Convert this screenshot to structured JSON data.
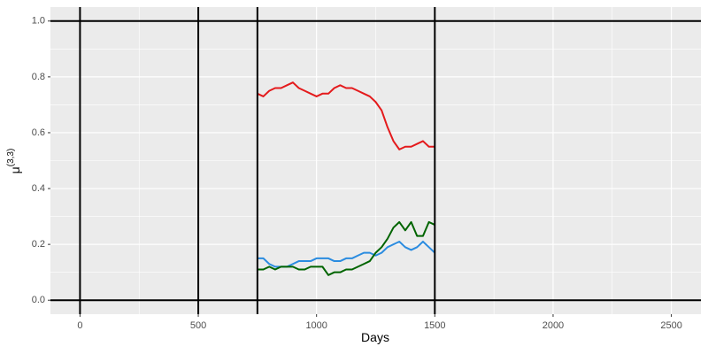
{
  "chart_data": {
    "type": "line",
    "xlabel": "Days",
    "ylabel": "μ",
    "ylabel_sup": "(3,3)",
    "x": [
      750,
      775,
      800,
      825,
      850,
      875,
      900,
      925,
      950,
      975,
      1000,
      1025,
      1050,
      1075,
      1100,
      1125,
      1150,
      1175,
      1200,
      1225,
      1250,
      1275,
      1300,
      1325,
      1350,
      1375,
      1400,
      1425,
      1450,
      1475,
      1500
    ],
    "series": [
      {
        "color": "#e41a1c",
        "values": [
          0.74,
          0.73,
          0.75,
          0.76,
          0.76,
          0.77,
          0.78,
          0.76,
          0.75,
          0.74,
          0.73,
          0.74,
          0.74,
          0.76,
          0.77,
          0.76,
          0.76,
          0.75,
          0.74,
          0.73,
          0.71,
          0.68,
          0.62,
          0.57,
          0.54,
          0.55,
          0.55,
          0.56,
          0.57,
          0.55,
          0.55
        ]
      },
      {
        "color": "#2b8ce0",
        "values": [
          0.15,
          0.15,
          0.13,
          0.12,
          0.12,
          0.12,
          0.13,
          0.14,
          0.14,
          0.14,
          0.15,
          0.15,
          0.15,
          0.14,
          0.14,
          0.15,
          0.15,
          0.16,
          0.17,
          0.17,
          0.16,
          0.17,
          0.19,
          0.2,
          0.21,
          0.19,
          0.18,
          0.19,
          0.21,
          0.19,
          0.17
        ]
      },
      {
        "color": "#006400",
        "values": [
          0.11,
          0.11,
          0.12,
          0.11,
          0.12,
          0.12,
          0.12,
          0.11,
          0.11,
          0.12,
          0.12,
          0.12,
          0.09,
          0.1,
          0.1,
          0.11,
          0.11,
          0.12,
          0.13,
          0.14,
          0.17,
          0.19,
          0.22,
          0.26,
          0.28,
          0.25,
          0.28,
          0.23,
          0.23,
          0.28,
          0.27
        ]
      }
    ],
    "xlim": [
      -125,
      2625
    ],
    "ylim": [
      -0.05,
      1.05
    ],
    "xticks": [
      0,
      500,
      1000,
      1500,
      2000,
      2500
    ],
    "xminor": [
      250,
      750,
      1250,
      1750,
      2250
    ],
    "yticks": [
      {
        "value": 0,
        "label": "0.0"
      },
      0.2,
      0.4,
      0.6,
      0.8,
      {
        "value": 1,
        "label": "1.0"
      }
    ],
    "yminor": [
      0.1,
      0.3,
      0.5,
      0.7,
      0.9
    ],
    "vlines": [
      0,
      500,
      750,
      1500
    ],
    "hlines": [
      0,
      1
    ],
    "grid": true,
    "background": "#ebebeb"
  }
}
